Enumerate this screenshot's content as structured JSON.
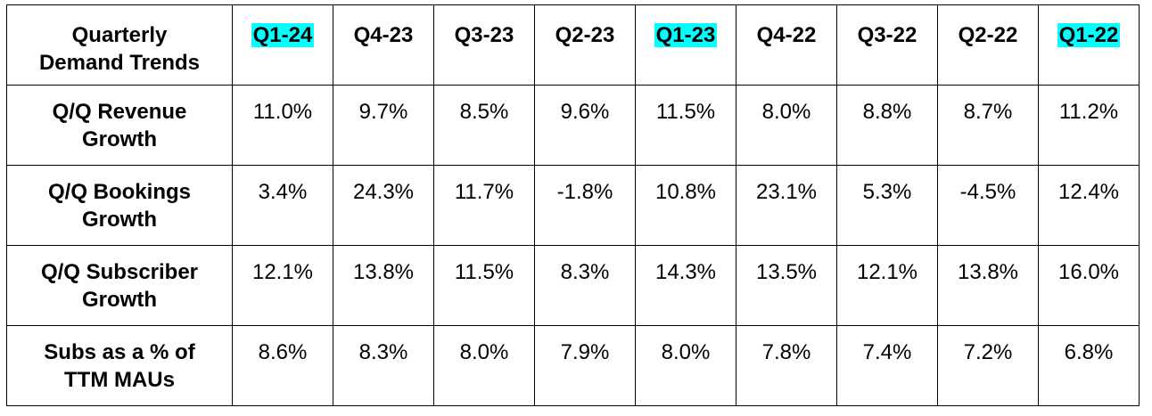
{
  "table": {
    "corner_label": "Quarterly\nDemand Trends",
    "corner_line1": "Quarterly",
    "corner_line2": "Demand Trends",
    "highlight_color": "#00ffff",
    "columns": [
      {
        "label": "Q1-24",
        "highlighted": true
      },
      {
        "label": "Q4-23",
        "highlighted": false
      },
      {
        "label": "Q3-23",
        "highlighted": false
      },
      {
        "label": "Q2-23",
        "highlighted": false
      },
      {
        "label": "Q1-23",
        "highlighted": true
      },
      {
        "label": "Q4-22",
        "highlighted": false
      },
      {
        "label": "Q3-22",
        "highlighted": false
      },
      {
        "label": "Q2-22",
        "highlighted": false
      },
      {
        "label": "Q1-22",
        "highlighted": true
      }
    ],
    "rows": [
      {
        "label_line1": "Q/Q Revenue",
        "label_line2": "Growth",
        "values": [
          "11.0%",
          "9.7%",
          "8.5%",
          "9.6%",
          "11.5%",
          "8.0%",
          "8.8%",
          "8.7%",
          "11.2%"
        ]
      },
      {
        "label_line1": "Q/Q Bookings",
        "label_line2": "Growth",
        "values": [
          "3.4%",
          "24.3%",
          "11.7%",
          "-1.8%",
          "10.8%",
          "23.1%",
          "5.3%",
          "-4.5%",
          "12.4%"
        ]
      },
      {
        "label_line1": "Q/Q Subscriber",
        "label_line2": "Growth",
        "values": [
          "12.1%",
          "13.8%",
          "11.5%",
          "8.3%",
          "14.3%",
          "13.5%",
          "12.1%",
          "13.8%",
          "16.0%"
        ]
      },
      {
        "label_line1": "Subs as a % of",
        "label_line2": "TTM MAUs",
        "values": [
          "8.6%",
          "8.3%",
          "8.0%",
          "7.9%",
          "8.0%",
          "7.8%",
          "7.4%",
          "7.2%",
          "6.8%"
        ]
      }
    ]
  }
}
